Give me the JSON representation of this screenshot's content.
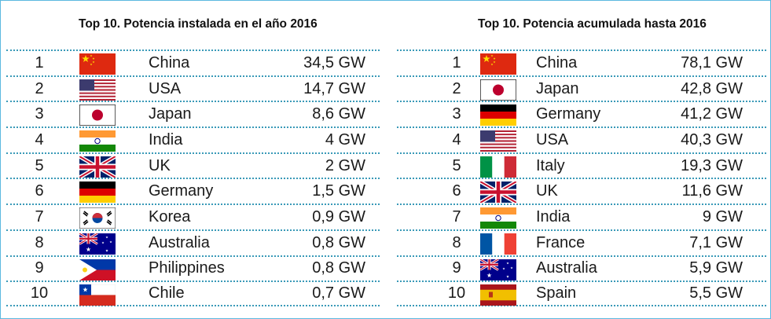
{
  "chart_data": [
    {
      "type": "table",
      "title": "Top 10. Potencia instalada en el año 2016",
      "columns": [
        "rank",
        "flag",
        "country",
        "value"
      ],
      "rows": [
        {
          "rank": "1",
          "flag": "china",
          "country": "China",
          "value": "34,5 GW",
          "gw": 34.5
        },
        {
          "rank": "2",
          "flag": "usa",
          "country": "USA",
          "value": "14,7 GW",
          "gw": 14.7
        },
        {
          "rank": "3",
          "flag": "japan",
          "country": "Japan",
          "value": "8,6 GW",
          "gw": 8.6
        },
        {
          "rank": "4",
          "flag": "india",
          "country": "India",
          "value": "4 GW",
          "gw": 4
        },
        {
          "rank": "5",
          "flag": "uk",
          "country": "UK",
          "value": "2 GW",
          "gw": 2
        },
        {
          "rank": "6",
          "flag": "germany",
          "country": "Germany",
          "value": "1,5 GW",
          "gw": 1.5
        },
        {
          "rank": "7",
          "flag": "korea",
          "country": "Korea",
          "value": "0,9 GW",
          "gw": 0.9
        },
        {
          "rank": "8",
          "flag": "australia",
          "country": "Australia",
          "value": "0,8 GW",
          "gw": 0.8
        },
        {
          "rank": "9",
          "flag": "philippines",
          "country": "Philippines",
          "value": "0,8 GW",
          "gw": 0.8
        },
        {
          "rank": "10",
          "flag": "chile",
          "country": "Chile",
          "value": "0,7 GW",
          "gw": 0.7
        }
      ]
    },
    {
      "type": "table",
      "title": "Top 10. Potencia acumulada hasta 2016",
      "columns": [
        "rank",
        "flag",
        "country",
        "value"
      ],
      "rows": [
        {
          "rank": "1",
          "flag": "china",
          "country": "China",
          "value": "78,1 GW",
          "gw": 78.1
        },
        {
          "rank": "2",
          "flag": "japan",
          "country": "Japan",
          "value": "42,8 GW",
          "gw": 42.8
        },
        {
          "rank": "3",
          "flag": "germany",
          "country": "Germany",
          "value": "41,2 GW",
          "gw": 41.2
        },
        {
          "rank": "4",
          "flag": "usa",
          "country": "USA",
          "value": "40,3 GW",
          "gw": 40.3
        },
        {
          "rank": "5",
          "flag": "italy",
          "country": "Italy",
          "value": "19,3 GW",
          "gw": 19.3
        },
        {
          "rank": "6",
          "flag": "uk",
          "country": "UK",
          "value": "11,6 GW",
          "gw": 11.6
        },
        {
          "rank": "7",
          "flag": "india",
          "country": "India",
          "value": "9 GW",
          "gw": 9
        },
        {
          "rank": "8",
          "flag": "france",
          "country": "France",
          "value": "7,1 GW",
          "gw": 7.1
        },
        {
          "rank": "9",
          "flag": "australia",
          "country": "Australia",
          "value": "5,9 GW",
          "gw": 5.9
        },
        {
          "rank": "10",
          "flag": "spain",
          "country": "Spain",
          "value": "5,5 GW",
          "gw": 5.5
        }
      ]
    }
  ],
  "colors": {
    "row_divider": "#3a9ab8",
    "frame_border": "#5bb9e0"
  }
}
